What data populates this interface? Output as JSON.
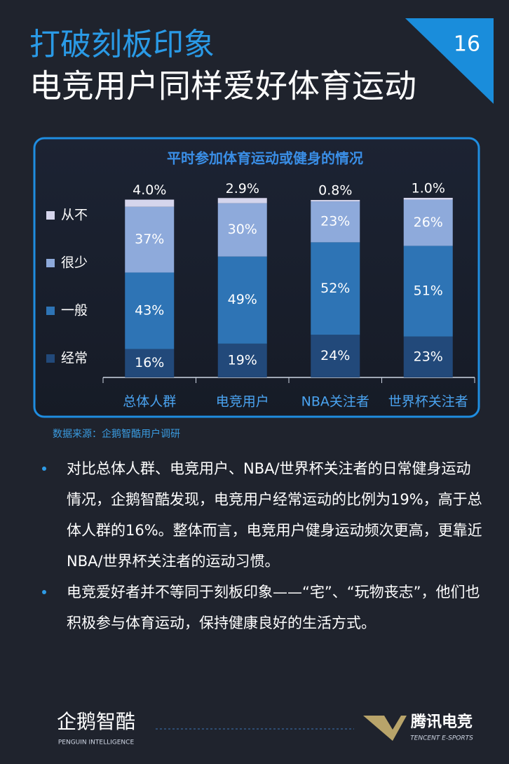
{
  "header": {
    "title": "打破刻板印象",
    "subtitle": "电竞用户同样爱好体育运动",
    "page_number": "16"
  },
  "chart_data": {
    "type": "stacked_bar",
    "title": "平时参加体育运动或健身的情况",
    "categories": [
      "总体人群",
      "电竞用户",
      "NBA关注者",
      "世界杯关注者"
    ],
    "series": [
      {
        "name": "经常",
        "color": "#22497a",
        "values": [
          16,
          19,
          24,
          23
        ],
        "value_labels": [
          "16%",
          "19%",
          "24%",
          "23%"
        ]
      },
      {
        "name": "一般",
        "color": "#2e74b5",
        "values": [
          43,
          49,
          52,
          51
        ],
        "value_labels": [
          "43%",
          "49%",
          "52%",
          "51%"
        ]
      },
      {
        "name": "很少",
        "color": "#8eaadb",
        "values": [
          37,
          30,
          23,
          26
        ],
        "value_labels": [
          "37%",
          "30%",
          "23%",
          "26%"
        ]
      },
      {
        "name": "从不",
        "color": "#d5d5ec",
        "values": [
          4.0,
          2.9,
          0.8,
          1.0
        ],
        "value_labels": [
          "4.0%",
          "2.9%",
          "0.8%",
          "1.0%"
        ]
      }
    ],
    "legend": "left"
  },
  "source": "数据来源：企鹅智酷用户调研",
  "bullets": [
    "对比总体人群、电竞用户、NBA/世界杯关注者的日常健身运动情况，企鹅智酷发现，电竞用户经常运动的比例为19%，高于总体人群的16%。整体而言，电竞用户健身运动频次更高，更靠近NBA/世界杯关注者的运动习惯。",
    "电竞爱好者并不等同于刻板印象——“宅”、“玩物丧志”，他们也积极参与体育运动，保持健康良好的生活方式。"
  ],
  "footer": {
    "left_logo": "企鹅智酷",
    "left_sub": "PENGUIN INTELLIGENCE",
    "right_logo": "腾讯电竞",
    "right_sub": "TENCENT E-SPORTS"
  }
}
